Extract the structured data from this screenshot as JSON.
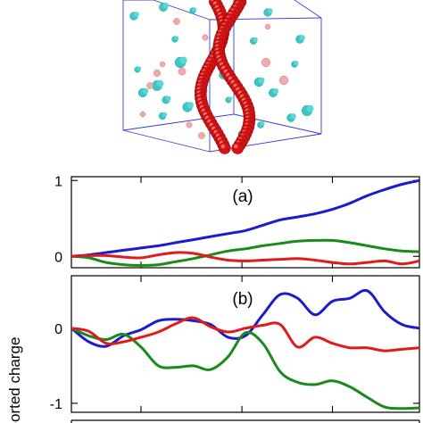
{
  "figure": {
    "ylabel": "ported charge"
  },
  "chart_data": [
    {
      "type": "line",
      "panel_label": "(a)",
      "ylim": [
        -0.15,
        1.05
      ],
      "yticks": [
        {
          "value": 1,
          "label": "1"
        },
        {
          "value": 0,
          "label": "0"
        }
      ],
      "xlim": [
        0,
        10
      ],
      "xticks": [
        2.0,
        4.9,
        7.5
      ],
      "series": [
        {
          "color": "#1b1bd0",
          "x": [
            0,
            0.5,
            1,
            1.5,
            2,
            2.5,
            3,
            3.5,
            4,
            4.5,
            5,
            5.5,
            6,
            6.5,
            7,
            7.5,
            8,
            8.5,
            9,
            9.5,
            10
          ],
          "y": [
            0,
            0.02,
            0.05,
            0.08,
            0.11,
            0.14,
            0.18,
            0.22,
            0.26,
            0.3,
            0.34,
            0.41,
            0.48,
            0.52,
            0.56,
            0.62,
            0.7,
            0.8,
            0.88,
            0.95,
            1.0
          ]
        },
        {
          "color": "#1a8a1a",
          "x": [
            0,
            0.5,
            1,
            1.5,
            2,
            2.5,
            3,
            3.5,
            4,
            4.5,
            5,
            5.5,
            6,
            6.5,
            7,
            7.5,
            8,
            8.5,
            9,
            9.5,
            10
          ],
          "y": [
            0,
            -0.02,
            -0.08,
            -0.11,
            -0.12,
            -0.11,
            -0.07,
            -0.03,
            0.02,
            0.07,
            0.1,
            0.14,
            0.17,
            0.2,
            0.21,
            0.21,
            0.18,
            0.14,
            0.1,
            0.07,
            0.06
          ]
        },
        {
          "color": "#e01b1b",
          "x": [
            0,
            0.5,
            1,
            1.5,
            2,
            2.5,
            3,
            3.5,
            4,
            4.5,
            5,
            5.5,
            6,
            6.5,
            7,
            7.5,
            8,
            8.5,
            9,
            9.5,
            10
          ],
          "y": [
            0,
            0.01,
            0.01,
            -0.01,
            -0.02,
            0.02,
            0.05,
            0.04,
            -0.01,
            -0.05,
            -0.06,
            -0.05,
            -0.04,
            -0.03,
            -0.05,
            -0.08,
            -0.1,
            -0.08,
            -0.06,
            -0.1,
            -0.06
          ]
        }
      ]
    },
    {
      "type": "line",
      "panel_label": "(b)",
      "ylim": [
        -1.12,
        0.7
      ],
      "yticks": [
        {
          "value": 0,
          "label": "0"
        },
        {
          "value": -1,
          "label": "-1"
        }
      ],
      "xlim": [
        0,
        10
      ],
      "xticks": [
        2.0,
        4.9,
        7.5
      ],
      "series": [
        {
          "color": "#1b1bd0",
          "x": [
            0,
            0.5,
            1,
            1.5,
            2,
            2.5,
            3,
            3.5,
            4,
            4.5,
            5,
            5.5,
            6,
            6.5,
            7,
            7.5,
            8,
            8.5,
            9,
            9.5,
            10
          ],
          "y": [
            0,
            -0.18,
            -0.24,
            -0.1,
            -0.02,
            0.1,
            0.12,
            0.1,
            0.05,
            -0.12,
            -0.1,
            0.18,
            0.45,
            0.4,
            0.18,
            0.36,
            0.4,
            0.5,
            0.22,
            0.05,
            0.0
          ]
        },
        {
          "color": "#1a8a1a",
          "x": [
            0,
            0.5,
            1,
            1.5,
            2,
            2.5,
            3,
            3.5,
            4,
            4.5,
            5,
            5.5,
            6,
            6.5,
            7,
            7.5,
            8,
            8.5,
            9,
            9.5,
            10
          ],
          "y": [
            0,
            -0.1,
            -0.15,
            -0.08,
            -0.25,
            -0.5,
            -0.52,
            -0.5,
            -0.55,
            -0.38,
            -0.06,
            -0.2,
            -0.58,
            -0.72,
            -0.75,
            -0.7,
            -0.78,
            -0.92,
            -1.05,
            -1.07,
            -1.06
          ]
        },
        {
          "color": "#e01b1b",
          "x": [
            0,
            0.5,
            1,
            1.5,
            2,
            2.5,
            3,
            3.5,
            4,
            4.5,
            5,
            5.5,
            6,
            6.5,
            7,
            7.5,
            8,
            8.5,
            9,
            9.5,
            10
          ],
          "y": [
            0,
            -0.04,
            -0.2,
            -0.18,
            -0.12,
            -0.05,
            0.06,
            0.14,
            0.02,
            -0.05,
            0.0,
            0.04,
            0.05,
            -0.25,
            -0.12,
            -0.2,
            -0.26,
            -0.26,
            -0.3,
            -0.28,
            -0.26
          ]
        }
      ]
    }
  ]
}
